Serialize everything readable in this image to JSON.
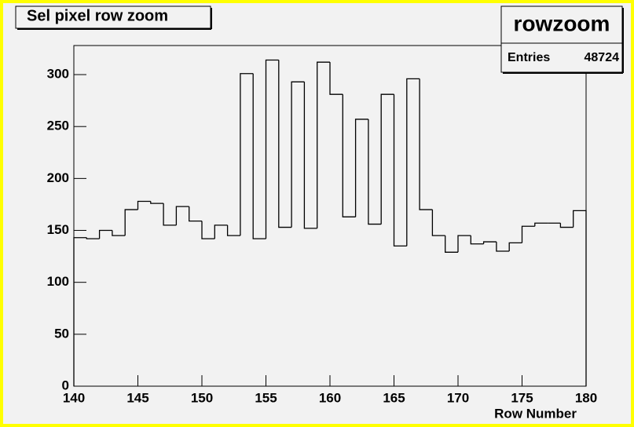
{
  "chart_data": {
    "type": "histogram",
    "title": "Sel pixel row zoom",
    "stats_title": "rowzoom",
    "stats_label": "Entries",
    "stats_value": 48724,
    "x_label": "Row Number",
    "bins": [
      140,
      141,
      142,
      143,
      144,
      145,
      146,
      147,
      148,
      149,
      150,
      151,
      152,
      153,
      154,
      155,
      156,
      157,
      158,
      159,
      160,
      161,
      162,
      163,
      164,
      165,
      166,
      167,
      168,
      169,
      170,
      171,
      172,
      173,
      174,
      175,
      176,
      177,
      178,
      179,
      180
    ],
    "counts": [
      143,
      142,
      150,
      145,
      170,
      178,
      176,
      155,
      173,
      159,
      142,
      155,
      145,
      301,
      142,
      314,
      153,
      293,
      152,
      312,
      281,
      163,
      257,
      156,
      281,
      135,
      296,
      170,
      145,
      129,
      145,
      137,
      139,
      130,
      138,
      154,
      157,
      157,
      153,
      169
    ],
    "color": "#000000",
    "xlim": [
      140,
      180
    ],
    "xticks": [
      140,
      145,
      150,
      155,
      160,
      165,
      170,
      175,
      180
    ],
    "ylim": [
      0,
      328
    ],
    "yticks": [
      0,
      50,
      100,
      150,
      200,
      250,
      300
    ]
  }
}
